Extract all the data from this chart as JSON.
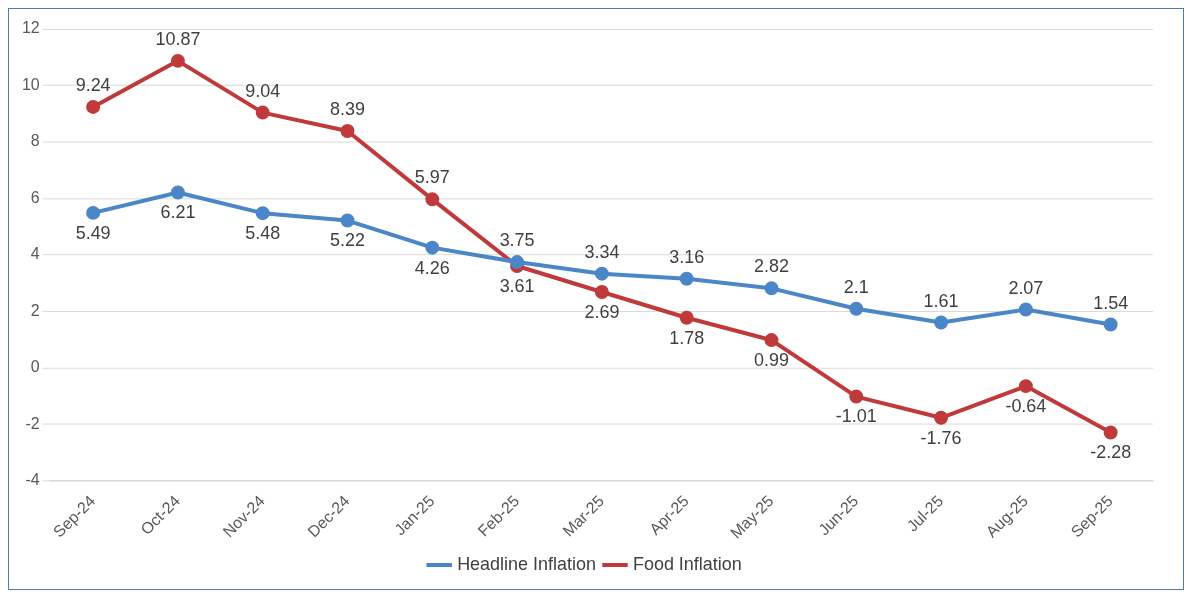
{
  "chart_data": {
    "type": "line",
    "categories": [
      "Sep-24",
      "Oct-24",
      "Nov-24",
      "Dec-24",
      "Jan-25",
      "Feb-25",
      "Mar-25",
      "Apr-25",
      "May-25",
      "Jun-25",
      "Jul-25",
      "Aug-25",
      "Sep-25"
    ],
    "series": [
      {
        "name": "Headline Inflation",
        "color": "#4a86c8",
        "values": [
          5.49,
          6.21,
          5.48,
          5.22,
          4.26,
          3.75,
          3.34,
          3.16,
          2.82,
          2.1,
          1.61,
          2.07,
          1.54
        ]
      },
      {
        "name": "Food Inflation",
        "color": "#c0393b",
        "values": [
          9.24,
          10.87,
          9.04,
          8.39,
          5.97,
          3.61,
          2.69,
          1.78,
          0.99,
          -1.01,
          -1.76,
          -0.64,
          -2.28
        ]
      }
    ],
    "ylim": [
      -4,
      12
    ],
    "yticks": [
      -4,
      -2,
      0,
      2,
      4,
      6,
      8,
      10,
      12
    ],
    "grid": "y",
    "legend": "bottom",
    "marker": "circle",
    "line_style": "solid",
    "data_labels": true
  }
}
